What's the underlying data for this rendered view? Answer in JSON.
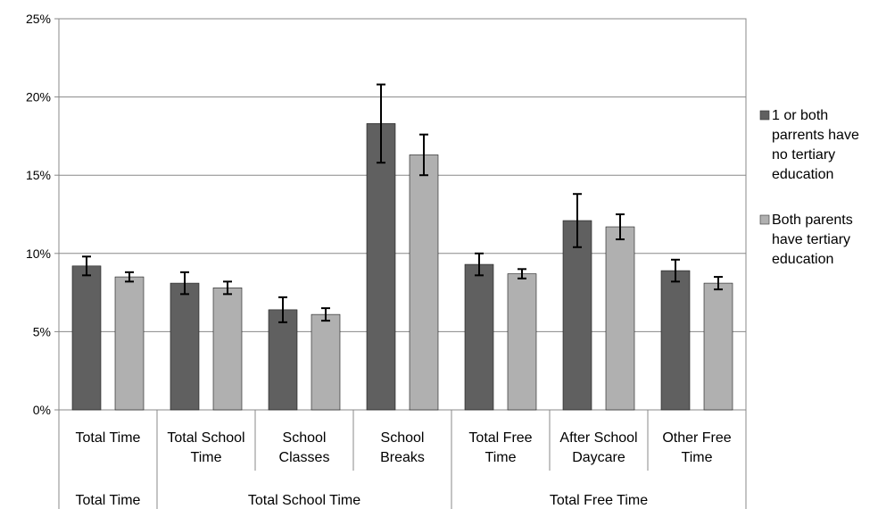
{
  "chart_data": {
    "type": "bar",
    "y_ticks": [
      "0%",
      "5%",
      "10%",
      "15%",
      "20%",
      "25%"
    ],
    "ylim": [
      0,
      25
    ],
    "y_unit": "%",
    "grid": true,
    "legend_position": "right",
    "categories": [
      {
        "label": [
          "Total Time"
        ]
      },
      {
        "label": [
          "Total School",
          "Time"
        ]
      },
      {
        "label": [
          "School",
          "Classes"
        ]
      },
      {
        "label": [
          "School",
          "Breaks"
        ]
      },
      {
        "label": [
          "Total Free",
          "Time"
        ]
      },
      {
        "label": [
          "After School",
          "Daycare"
        ]
      },
      {
        "label": [
          "Other Free",
          "Time"
        ]
      }
    ],
    "groups": [
      {
        "label": "Total Time",
        "span": 1
      },
      {
        "label": "Total School Time",
        "span": 3
      },
      {
        "label": "Total Free Time",
        "span": 3
      }
    ],
    "series": [
      {
        "name": [
          "1 or both",
          "parrents have",
          "no tertiary",
          "education"
        ],
        "color": "#606060",
        "values": [
          9.2,
          8.1,
          6.4,
          18.3,
          9.3,
          12.1,
          8.9
        ],
        "error": [
          0.6,
          0.7,
          0.8,
          2.5,
          0.7,
          1.7,
          0.7
        ]
      },
      {
        "name": [
          "Both parents",
          "have tertiary",
          "education"
        ],
        "color": "#b0b0b0",
        "values": [
          8.5,
          7.8,
          6.1,
          16.3,
          8.7,
          11.7,
          8.1
        ],
        "error": [
          0.3,
          0.4,
          0.4,
          1.3,
          0.3,
          0.8,
          0.4
        ]
      }
    ]
  }
}
